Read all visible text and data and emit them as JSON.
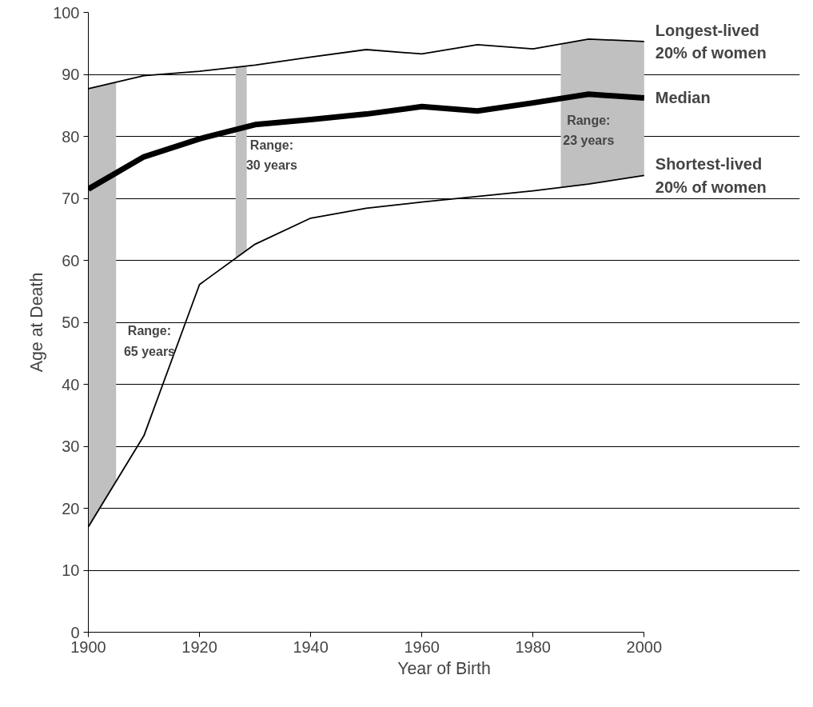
{
  "chart_data": {
    "type": "line",
    "xlabel": "Year of Birth",
    "ylabel": "Age at Death",
    "x": [
      1900,
      1910,
      1920,
      1930,
      1940,
      1950,
      1960,
      1970,
      1980,
      1990,
      2000
    ],
    "series": [
      {
        "name": "Longest-lived\n20% of women",
        "color": "#000000",
        "values": [
          87.7,
          89.8,
          90.5,
          91.5,
          92.8,
          94.0,
          93.3,
          94.8,
          94.1,
          95.7,
          95.3
        ]
      },
      {
        "name": "Median",
        "color": "#000000",
        "values": [
          71.5,
          76.7,
          79.6,
          81.9,
          82.7,
          83.6,
          84.8,
          84.1,
          85.4,
          86.8,
          86.2
        ]
      },
      {
        "name": "Shortest-lived\n20% of women",
        "color": "#000000",
        "values": [
          17.0,
          31.7,
          56.1,
          62.6,
          66.8,
          68.4,
          69.4,
          70.3,
          71.2,
          72.3,
          73.7
        ]
      }
    ],
    "bands": [
      {
        "axis": "x",
        "from": 1900,
        "to": 1905,
        "color": "#c0c0c0"
      },
      {
        "axis": "x",
        "from": 1926.5,
        "to": 1928.5,
        "color": "#c0c0c0"
      },
      {
        "axis": "x",
        "from": 1985,
        "to": 2000,
        "color": "#c0c0c0"
      }
    ],
    "annotations": [
      "Range:\n65 years",
      "Range:\n30 years",
      "Range:\n23 years"
    ],
    "xlim": [
      1900,
      2000
    ],
    "xticks": [
      1900,
      1920,
      1940,
      1960,
      1980,
      2000
    ],
    "ylim": [
      0,
      100
    ],
    "yticks": [
      0,
      10,
      20,
      30,
      40,
      50,
      60,
      70,
      80,
      90,
      100
    ],
    "grid": "y",
    "marker": "none",
    "line_style": "solid"
  }
}
